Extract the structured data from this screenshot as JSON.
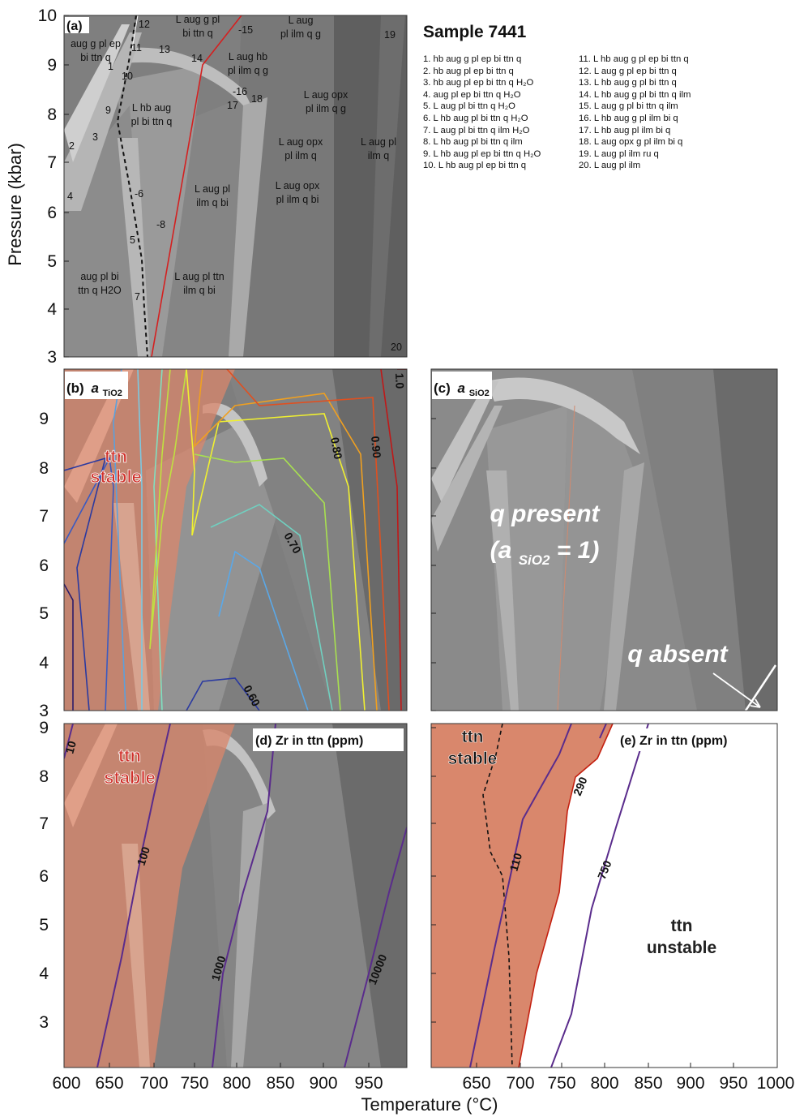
{
  "sample_title": "Sample 7441",
  "axis": {
    "ylabel": "Pressure (kbar)",
    "xlabel": "Temperature (°C)",
    "yticks_a": [
      "3",
      "4",
      "5",
      "6",
      "7",
      "8",
      "9",
      "10"
    ],
    "yticks_b": [
      "3",
      "4",
      "5",
      "6",
      "7",
      "8",
      "9"
    ],
    "yticks_d": [
      "3",
      "4",
      "5",
      "6",
      "7",
      "8",
      "9"
    ],
    "xticks_left": [
      "600",
      "650",
      "700",
      "750",
      "800",
      "850",
      "900",
      "950"
    ],
    "xticks_right": [
      "650",
      "700",
      "750",
      "800",
      "850",
      "900",
      "950",
      "1000"
    ]
  },
  "panels": {
    "a": {
      "tag": "(a)"
    },
    "b": {
      "tag": "(b)",
      "tag_var": "a",
      "tag_sub": "TiO2",
      "stable_line1": "ttn",
      "stable_line2": "stable"
    },
    "c": {
      "tag": "(c)",
      "tag_var": "a",
      "tag_sub": "SiO2",
      "present_line1": "q present",
      "present_line2_open": "(a",
      "present_line2_sub": "SiO2",
      "present_line2_close": " = 1)",
      "absent": "q absent"
    },
    "d": {
      "tag": "(d) Zr in ttn (ppm)",
      "stable_line1": "ttn",
      "stable_line2": "stable"
    },
    "e": {
      "tag": "(e) Zr in ttn (ppm)",
      "stable_line1": "ttn",
      "stable_line2": "stable",
      "unstable_line1": "ttn",
      "unstable_line2": "unstable"
    }
  },
  "field_labels_a": [
    [
      "aug g pl ep",
      "bi ttn q"
    ],
    [
      "L aug g pl",
      "bi ttn q"
    ],
    [
      "L aug",
      "pl ilm q g"
    ],
    [
      "L hb aug",
      "pl bi ttn q"
    ],
    [
      "L aug hb",
      "pl ilm q g"
    ],
    [
      "L aug opx",
      "pl ilm q g"
    ],
    [
      "L aug opx",
      "pl ilm q"
    ],
    [
      "L aug pl",
      "ilm q"
    ],
    [
      "L aug pl",
      "ilm q bi"
    ],
    [
      "L aug opx",
      "pl ilm q bi"
    ],
    [
      "aug pl bi",
      "ttn q H2O"
    ],
    [
      "L aug pl ttn",
      "ilm q bi"
    ]
  ],
  "field_numbers_a": [
    "1",
    "2",
    "3",
    "4",
    "5",
    "-6",
    "7",
    "-8",
    "9",
    "10",
    "11",
    "12",
    "13",
    "14",
    "-15",
    "-16",
    "17",
    "18",
    "19",
    "20"
  ],
  "legend_left": [
    "1. hb aug g pl ep bi ttn q",
    "2. hb aug pl ep bi ttn q",
    "3. hb aug pl ep bi ttn q H₂O",
    "4. aug pl ep bi ttn q H₂O",
    "5. L aug pl bi ttn q H₂O",
    "6. L hb aug pl bi ttn q H₂O",
    "7. L aug pl bi ttn q ilm H₂O",
    "8. L hb aug pl bi ttn q ilm",
    "9. L hb aug pl ep bi ttn q H₂O",
    "10. L hb aug pl ep bi ttn q"
  ],
  "legend_right": [
    "11. L hb aug g pl ep bi ttn q",
    "12. L aug g pl ep bi ttn q",
    "13. L hb aug g pl bi ttn q",
    "14. L hb aug g pl bi ttn q ilm",
    "15. L aug g pl bi ttn q ilm",
    "16. L hb aug g pl ilm bi q",
    "17. L hb aug pl ilm bi q",
    "18. L aug opx g pl ilm bi q",
    "19. L aug pl ilm ru q",
    "20. L aug pl ilm"
  ],
  "contour_labels_b": [
    "0.60",
    "0.70",
    "0.80",
    "0.90",
    "1.0"
  ],
  "contour_labels_d": [
    "10",
    "100",
    "1000",
    "10000"
  ],
  "contour_labels_e": [
    "110",
    "290",
    "750"
  ],
  "colors": {
    "ttn_field": "#d9876c",
    "ttn_label": "#d0302a",
    "ttn_boundary_red": "#d42020",
    "contour_purple": "#5a2c8c"
  }
}
